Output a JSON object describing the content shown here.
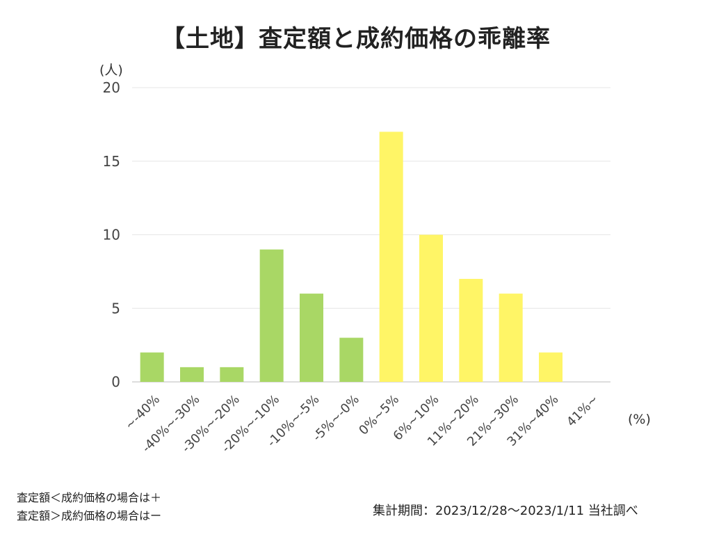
{
  "title": "【土地】査定額と成約価格の乖離率",
  "notes": {
    "line1": "査定額＜成約価格の場合は＋",
    "line2": "査定額＞成約価格の場合はー",
    "period": "集計期間：2023/12/28〜2023/1/11 当社調べ"
  },
  "colors": {
    "negative": "#a9d765",
    "positive": "#fff566",
    "grid": "#e6e6e6",
    "axis": "#bbbbbb"
  },
  "chart_data": {
    "type": "bar",
    "title": "【土地】査定額と成約価格の乖離率",
    "ylabel": "(人)",
    "xlabel": "(%)",
    "ylim": [
      0,
      20
    ],
    "yticks": [
      0,
      5,
      10,
      15,
      20
    ],
    "grid": true,
    "categories": [
      "~-40%",
      "-40%~-30%",
      "-30%~-20%",
      "-20%~-10%",
      "-10%~-5%",
      "-5%~-0%",
      "0%~5%",
      "6%~10%",
      "11%~20%",
      "21%~30%",
      "31%~40%",
      "41%~"
    ],
    "values": [
      2,
      1,
      1,
      9,
      6,
      3,
      17,
      10,
      7,
      6,
      2,
      0
    ],
    "bar_colors": [
      "negative",
      "negative",
      "negative",
      "negative",
      "negative",
      "negative",
      "positive",
      "positive",
      "positive",
      "positive",
      "positive",
      "positive"
    ]
  }
}
